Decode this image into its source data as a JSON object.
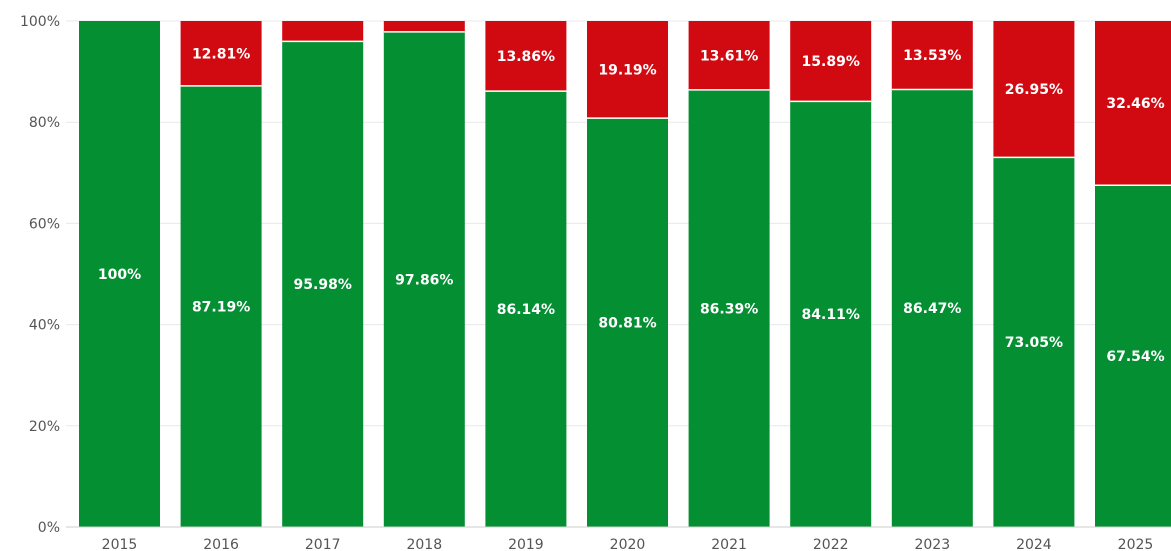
{
  "chart_data": {
    "type": "bar",
    "stacked": true,
    "categories": [
      "2015",
      "2016",
      "2017",
      "2018",
      "2019",
      "2020",
      "2021",
      "2022",
      "2023",
      "2024",
      "2025"
    ],
    "series": [
      {
        "color": "#048f33",
        "values": [
          100,
          87.19,
          95.98,
          97.86,
          86.14,
          80.81,
          86.39,
          84.11,
          86.47,
          73.05,
          67.54
        ],
        "labels": [
          "100%",
          "87.19%",
          "95.98%",
          "97.86%",
          "86.14%",
          "80.81%",
          "86.39%",
          "84.11%",
          "86.47%",
          "73.05%",
          "67.54%"
        ]
      },
      {
        "color": "#d10a12",
        "values": [
          0,
          12.81,
          4.02,
          2.14,
          13.86,
          19.19,
          13.61,
          15.89,
          13.53,
          26.95,
          32.46
        ],
        "labels": [
          "",
          "12.81%",
          "",
          "",
          "13.86%",
          "19.19%",
          "13.61%",
          "15.89%",
          "13.53%",
          "26.95%",
          "32.46%"
        ]
      }
    ],
    "ylim": [
      0,
      100
    ],
    "yticks": [
      "0%",
      "20%",
      "40%",
      "60%",
      "80%",
      "100%"
    ],
    "grid": true,
    "legend": "none"
  }
}
